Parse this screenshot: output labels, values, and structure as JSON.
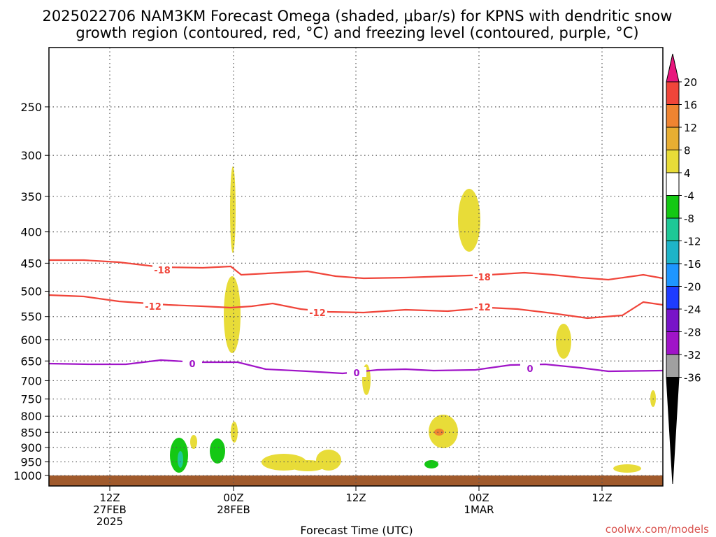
{
  "chart_data": {
    "type": "heatmap",
    "title_line1": "2025022706 NAM3KM Forecast Omega (shaded, μbar/s) for KPNS with dendritic snow",
    "title_line2": "growth region (contoured, red, °C) and freezing level (contoured, purple, °C)",
    "xlabel": "Forecast Time (UTC)",
    "ylabel": "",
    "y_scale": "log-pressure",
    "y_ticks": [
      "250",
      "300",
      "350",
      "400",
      "450",
      "500",
      "550",
      "600",
      "650",
      "700",
      "750",
      "800",
      "850",
      "900",
      "950",
      "1000"
    ],
    "x_ticks": [
      {
        "line1": "12Z",
        "line2": "27FEB",
        "line3": "2025"
      },
      {
        "line1": "00Z",
        "line2": "28FEB",
        "line3": ""
      },
      {
        "line1": "12Z",
        "line2": "",
        "line3": ""
      },
      {
        "line1": "00Z",
        "line2": "1MAR",
        "line3": ""
      },
      {
        "line1": "12Z",
        "line2": "",
        "line3": ""
      }
    ],
    "colorbar": {
      "ticks": [
        "20",
        "16",
        "12",
        "8",
        "4",
        "-4",
        "-8",
        "-12",
        "-16",
        "-20",
        "-24",
        "-28",
        "-32",
        "-36"
      ],
      "colors": [
        "#e8167d",
        "#f0453a",
        "#ef8431",
        "#e8ae32",
        "#e8dc38",
        "#ffffff",
        "#14c814",
        "#1ec896",
        "#1eb4c8",
        "#1e96ff",
        "#1e3cff",
        "#7814c8",
        "#a014c8",
        "#a0a0a0",
        "#000000"
      ]
    },
    "contours": [
      {
        "label": "-18",
        "color": "#f0453a",
        "label_hours": [
          6,
          30
        ]
      },
      {
        "label": "-12",
        "color": "#f0453a",
        "label_hours": [
          5,
          17,
          30
        ]
      },
      {
        "label": "0",
        "color": "#a014c8",
        "label_hours": [
          8,
          20,
          34
        ]
      }
    ],
    "grid": true
  },
  "credit": "coolwx.com/models"
}
